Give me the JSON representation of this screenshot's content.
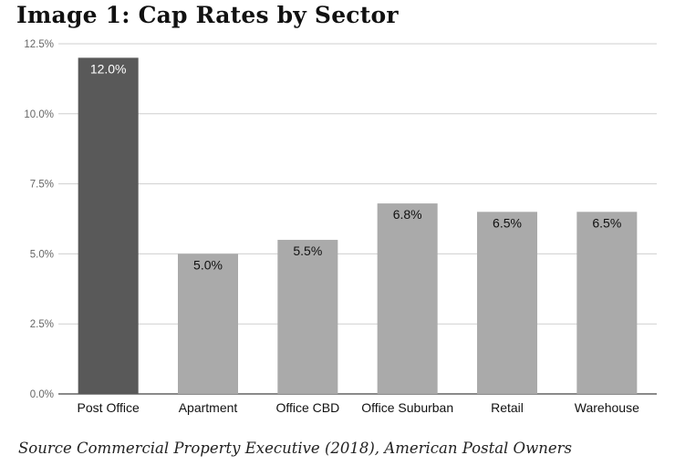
{
  "chart_data": {
    "type": "bar",
    "title": "Image 1: Cap Rates by Sector",
    "xlabel": "",
    "ylabel": "",
    "categories": [
      "Post Office",
      "Apartment",
      "Office CBD",
      "Office Suburban",
      "Retail",
      "Warehouse"
    ],
    "values": [
      12.0,
      5.0,
      5.5,
      6.8,
      6.5,
      6.5
    ],
    "data_labels": [
      "12.0%",
      "5.0%",
      "5.5%",
      "6.8%",
      "6.5%",
      "6.5%"
    ],
    "bar_colors": [
      "#595959",
      "#aaaaaa",
      "#aaaaaa",
      "#aaaaaa",
      "#aaaaaa",
      "#aaaaaa"
    ],
    "data_label_colors": [
      "#ffffff",
      "#111111",
      "#111111",
      "#111111",
      "#111111",
      "#111111"
    ],
    "ylim": [
      0,
      12.5
    ],
    "yticks": [
      0,
      2.5,
      5,
      7.5,
      10,
      12.5
    ],
    "ytick_labels": [
      "0.0%",
      "2.5%",
      "5.0%",
      "7.5%",
      "10.0%",
      "12.5%"
    ],
    "grid": true,
    "legend": "none",
    "source": "Source Commercial Property Executive (2018), American Postal Owners"
  }
}
